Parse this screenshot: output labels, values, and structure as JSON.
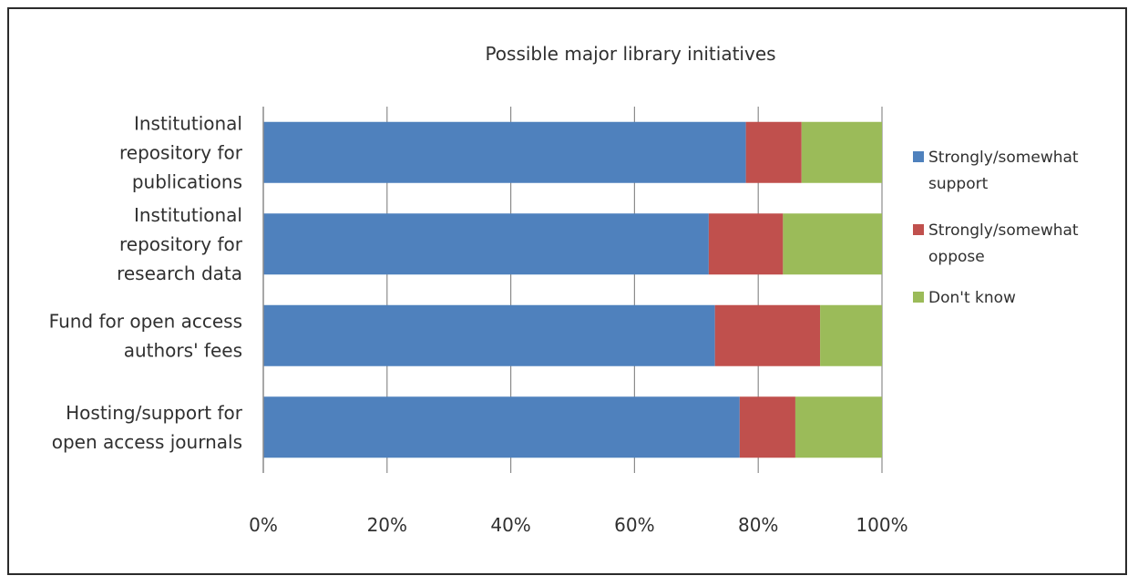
{
  "chart_data": {
    "type": "bar",
    "orientation": "horizontal",
    "stacked": "percent",
    "title": "Possible major library initiatives",
    "categories": [
      [
        "Institutional",
        "repository for",
        "publications"
      ],
      [
        "Institutional",
        "repository for",
        "research data"
      ],
      [
        "Fund for open access",
        "authors' fees"
      ],
      [
        "Hosting/support for",
        "open access journals"
      ]
    ],
    "series": [
      {
        "name": "Strongly/somewhat support",
        "legend_lines": [
          "Strongly/somewhat",
          "support"
        ],
        "color": "#4f81bd",
        "values": [
          78,
          72,
          73,
          77
        ]
      },
      {
        "name": "Strongly/somewhat oppose",
        "legend_lines": [
          "Strongly/somewhat",
          "oppose"
        ],
        "color": "#c0504d",
        "values": [
          9,
          12,
          17,
          9
        ]
      },
      {
        "name": "Don't know",
        "legend_lines": [
          "Don't know"
        ],
        "color": "#9bbb59",
        "values": [
          13,
          16,
          10,
          14
        ]
      }
    ],
    "xticks": [
      "0%",
      "20%",
      "40%",
      "60%",
      "80%",
      "100%"
    ],
    "xlim": [
      0,
      100
    ],
    "grid": true,
    "legend_position": "right"
  }
}
